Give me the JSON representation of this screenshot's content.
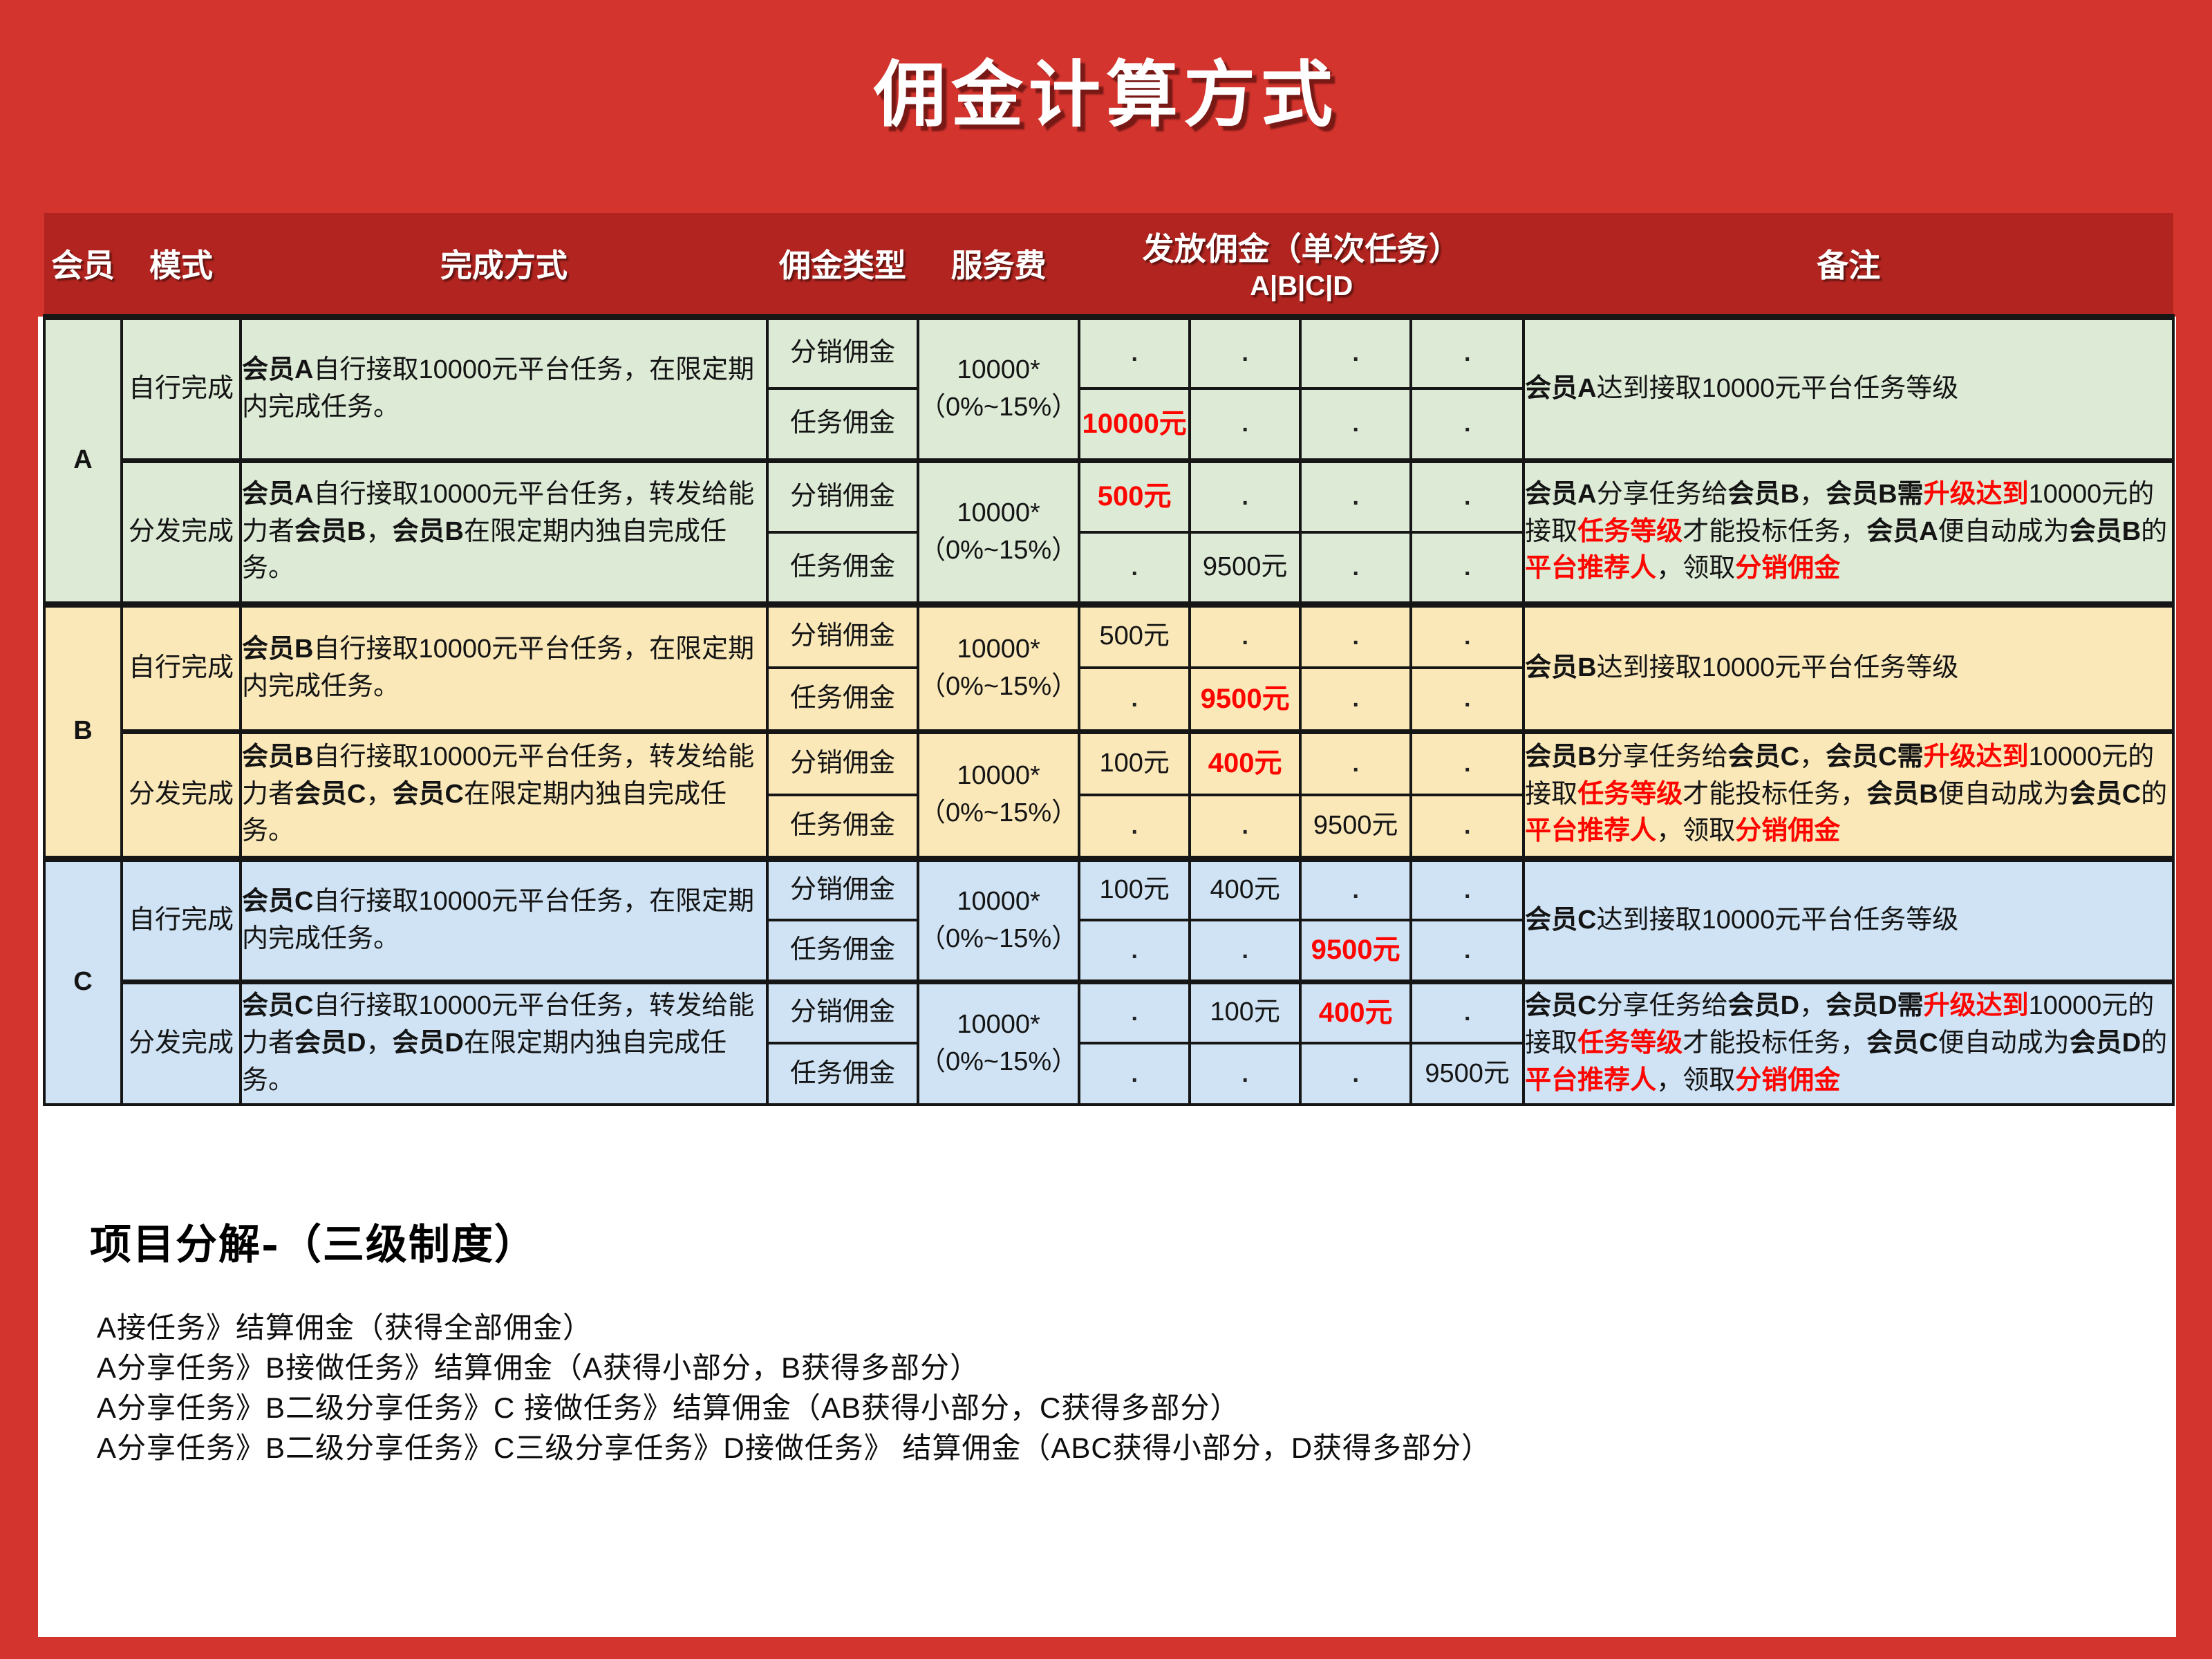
{
  "page": {
    "title": "佣金计算方式"
  },
  "colors": {
    "page_background": "#d3342d",
    "header_background": "#b2241f",
    "section_a_background": "#dcead6",
    "section_b_background": "#fae8b8",
    "section_c_background": "#cfe3f4",
    "value_highlight": "#fe0500",
    "title_color": "#ffffff"
  },
  "table": {
    "headers": {
      "member": "会员",
      "mode": "模式",
      "method": "完成方式",
      "commission_type": "佣金类型",
      "service_fee": "服务费",
      "payout": "发放佣金（单次任务）",
      "payout_sub": "A|B|C|D",
      "remark": "备注"
    },
    "payout_columns": [
      "A",
      "B",
      "C",
      "D"
    ],
    "sections": [
      {
        "member": "A",
        "background": "#dcead6",
        "modes": [
          {
            "mode": "自行完成",
            "method": [
              {
                "t": "会员A",
                "b": true
              },
              {
                "t": "自行接取10000元平台任务，在限定期内完成任务。"
              }
            ],
            "fee": {
              "line1": "10000*",
              "line2": "（0%~15%）"
            },
            "rows": [
              {
                "type": "分销佣金",
                "payouts": [
                  {
                    "v": "."
                  },
                  {
                    "v": "."
                  },
                  {
                    "v": "."
                  },
                  {
                    "v": "."
                  }
                ]
              },
              {
                "type": "任务佣金",
                "payouts": [
                  {
                    "v": "10000元",
                    "red": true
                  },
                  {
                    "v": "."
                  },
                  {
                    "v": "."
                  },
                  {
                    "v": "."
                  }
                ]
              }
            ],
            "remark": [
              {
                "t": "会员A",
                "b": true
              },
              {
                "t": "达到接取10000元平台任务等级"
              }
            ]
          },
          {
            "mode": "分发完成",
            "method": [
              {
                "t": "会员A",
                "b": true
              },
              {
                "t": "自行接取10000元平台任务，转发给能力者"
              },
              {
                "t": "会员B",
                "b": true
              },
              {
                "t": "，"
              },
              {
                "t": "会员B",
                "b": true
              },
              {
                "t": "在限定期内独自完成任务。"
              }
            ],
            "fee": {
              "line1": "10000*",
              "line2": "（0%~15%）"
            },
            "rows": [
              {
                "type": "分销佣金",
                "payouts": [
                  {
                    "v": "500元",
                    "red": true
                  },
                  {
                    "v": "."
                  },
                  {
                    "v": "."
                  },
                  {
                    "v": "."
                  }
                ]
              },
              {
                "type": "任务佣金",
                "payouts": [
                  {
                    "v": "."
                  },
                  {
                    "v": "9500元"
                  },
                  {
                    "v": "."
                  },
                  {
                    "v": "."
                  }
                ]
              }
            ],
            "remark": [
              {
                "t": "会员A",
                "b": true
              },
              {
                "t": "分享任务给"
              },
              {
                "t": "会员B",
                "b": true
              },
              {
                "t": "，"
              },
              {
                "t": "会员B需",
                "b": true
              },
              {
                "t": "升级达到",
                "b": true,
                "r": true
              },
              {
                "t": "10000元的接取"
              },
              {
                "t": "任务等级",
                "b": true,
                "r": true
              },
              {
                "t": "才能投标任务，"
              },
              {
                "t": "会员A",
                "b": true
              },
              {
                "t": "便自动成为"
              },
              {
                "t": "会员B",
                "b": true
              },
              {
                "t": "的"
              },
              {
                "t": "平台推荐人",
                "b": true,
                "r": true
              },
              {
                "t": "，领取"
              },
              {
                "t": "分销佣金",
                "b": true,
                "r": true
              }
            ]
          }
        ]
      },
      {
        "member": "B",
        "background": "#fae8b8",
        "modes": [
          {
            "mode": "自行完成",
            "method": [
              {
                "t": "会员B",
                "b": true
              },
              {
                "t": "自行接取10000元平台任务，在限定期内完成任务。"
              }
            ],
            "fee": {
              "line1": "10000*",
              "line2": "（0%~15%）"
            },
            "rows": [
              {
                "type": "分销佣金",
                "payouts": [
                  {
                    "v": "500元"
                  },
                  {
                    "v": "."
                  },
                  {
                    "v": "."
                  },
                  {
                    "v": "."
                  }
                ]
              },
              {
                "type": "任务佣金",
                "payouts": [
                  {
                    "v": "."
                  },
                  {
                    "v": "9500元",
                    "red": true
                  },
                  {
                    "v": "."
                  },
                  {
                    "v": "."
                  }
                ]
              }
            ],
            "remark": [
              {
                "t": "会员B",
                "b": true
              },
              {
                "t": "达到接取10000元平台任务等级"
              }
            ]
          },
          {
            "mode": "分发完成",
            "method": [
              {
                "t": "会员B",
                "b": true
              },
              {
                "t": "自行接取10000元平台任务，转发给能力者"
              },
              {
                "t": "会员C",
                "b": true
              },
              {
                "t": "，"
              },
              {
                "t": "会员C",
                "b": true
              },
              {
                "t": "在限定期内独自完成任务。"
              }
            ],
            "fee": {
              "line1": "10000*",
              "line2": "（0%~15%）"
            },
            "rows": [
              {
                "type": "分销佣金",
                "payouts": [
                  {
                    "v": "100元"
                  },
                  {
                    "v": "400元",
                    "red": true
                  },
                  {
                    "v": "."
                  },
                  {
                    "v": "."
                  }
                ]
              },
              {
                "type": "任务佣金",
                "payouts": [
                  {
                    "v": "."
                  },
                  {
                    "v": "."
                  },
                  {
                    "v": "9500元"
                  },
                  {
                    "v": "."
                  }
                ]
              }
            ],
            "remark": [
              {
                "t": "会员B",
                "b": true
              },
              {
                "t": "分享任务给"
              },
              {
                "t": "会员C",
                "b": true
              },
              {
                "t": "，"
              },
              {
                "t": "会员C需",
                "b": true
              },
              {
                "t": "升级达到",
                "b": true,
                "r": true
              },
              {
                "t": "10000元的接取"
              },
              {
                "t": "任务等级",
                "b": true,
                "r": true
              },
              {
                "t": "才能投标任务，"
              },
              {
                "t": "会员B",
                "b": true
              },
              {
                "t": "便自动成为"
              },
              {
                "t": "会员C",
                "b": true
              },
              {
                "t": "的"
              },
              {
                "t": "平台推荐人",
                "b": true,
                "r": true
              },
              {
                "t": "，领取"
              },
              {
                "t": "分销佣金",
                "b": true,
                "r": true
              }
            ]
          }
        ]
      },
      {
        "member": "C",
        "background": "#cfe3f4",
        "modes": [
          {
            "mode": "自行完成",
            "method": [
              {
                "t": "会员C",
                "b": true
              },
              {
                "t": "自行接取10000元平台任务，在限定期内完成任务。"
              }
            ],
            "fee": {
              "line1": "10000*",
              "line2": "（0%~15%）"
            },
            "rows": [
              {
                "type": "分销佣金",
                "payouts": [
                  {
                    "v": "100元"
                  },
                  {
                    "v": "400元"
                  },
                  {
                    "v": "."
                  },
                  {
                    "v": "."
                  }
                ]
              },
              {
                "type": "任务佣金",
                "payouts": [
                  {
                    "v": "."
                  },
                  {
                    "v": "."
                  },
                  {
                    "v": "9500元",
                    "red": true
                  },
                  {
                    "v": "."
                  }
                ]
              }
            ],
            "remark": [
              {
                "t": "会员C",
                "b": true
              },
              {
                "t": "达到接取10000元平台任务等级"
              }
            ]
          },
          {
            "mode": "分发完成",
            "method": [
              {
                "t": "会员C",
                "b": true
              },
              {
                "t": "自行接取10000元平台任务，转发给能力者"
              },
              {
                "t": "会员D",
                "b": true
              },
              {
                "t": "，"
              },
              {
                "t": "会员D",
                "b": true
              },
              {
                "t": "在限定期内独自完成任务。"
              }
            ],
            "fee": {
              "line1": "10000*",
              "line2": "（0%~15%）"
            },
            "rows": [
              {
                "type": "分销佣金",
                "payouts": [
                  {
                    "v": "."
                  },
                  {
                    "v": "100元"
                  },
                  {
                    "v": "400元",
                    "red": true
                  },
                  {
                    "v": "."
                  }
                ]
              },
              {
                "type": "任务佣金",
                "payouts": [
                  {
                    "v": "."
                  },
                  {
                    "v": "."
                  },
                  {
                    "v": "."
                  },
                  {
                    "v": "9500元"
                  }
                ]
              }
            ],
            "remark": [
              {
                "t": "会员C",
                "b": true
              },
              {
                "t": "分享任务给"
              },
              {
                "t": "会员D",
                "b": true
              },
              {
                "t": "，"
              },
              {
                "t": "会员D需",
                "b": true
              },
              {
                "t": "升级达到",
                "b": true,
                "r": true
              },
              {
                "t": "10000元的接取"
              },
              {
                "t": "任务等级",
                "b": true,
                "r": true
              },
              {
                "t": "才能投标任务，"
              },
              {
                "t": "会员C",
                "b": true
              },
              {
                "t": "便自动成为"
              },
              {
                "t": "会员D",
                "b": true
              },
              {
                "t": "的"
              },
              {
                "t": "平台推荐人",
                "b": true,
                "r": true
              },
              {
                "t": "，领取"
              },
              {
                "t": "分销佣金",
                "b": true,
                "r": true
              }
            ]
          }
        ]
      }
    ]
  },
  "footer": {
    "heading": "项目分解-（三级制度）",
    "lines": [
      "A接任务》结算佣金（获得全部佣金）",
      "A分享任务》B接做任务》结算佣金（A获得小部分，B获得多部分）",
      "A分享任务》B二级分享任务》C 接做任务》结算佣金（AB获得小部分，C获得多部分）",
      "A分享任务》B二级分享任务》C三级分享任务》D接做任务》 结算佣金（ABC获得小部分，D获得多部分）"
    ]
  }
}
